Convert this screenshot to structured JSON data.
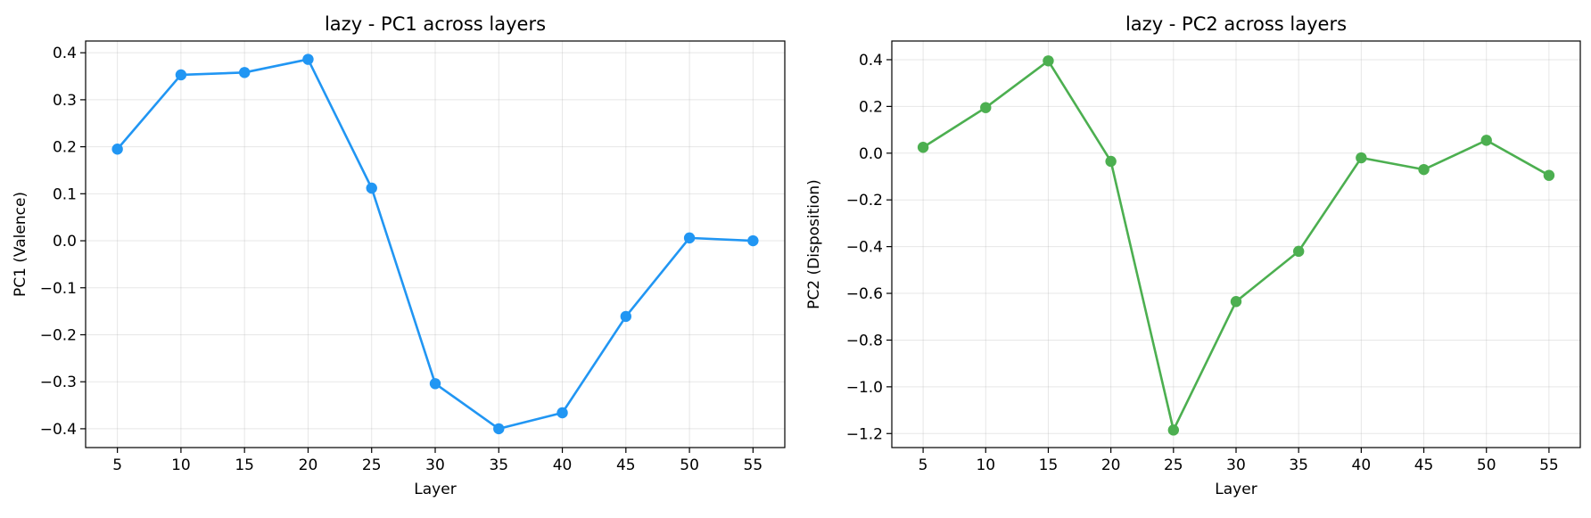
{
  "chart_data": [
    {
      "type": "line",
      "title": "lazy - PC1 across layers",
      "xlabel": "Layer",
      "ylabel": "PC1 (Valence)",
      "x": [
        5,
        10,
        15,
        20,
        25,
        30,
        35,
        40,
        45,
        50,
        55
      ],
      "xticks": [
        5,
        10,
        15,
        20,
        25,
        30,
        35,
        40,
        45,
        50,
        55
      ],
      "xlim": [
        2.5,
        57.5
      ],
      "ylim": [
        -0.44,
        0.425
      ],
      "yticks": [
        0.4,
        0.3,
        0.2,
        0.1,
        0.0,
        -0.1,
        -0.2,
        -0.3,
        -0.4
      ],
      "ytick_labels": [
        "0.4",
        "0.3",
        "0.2",
        "0.1",
        "0.0",
        "−0.1",
        "−0.2",
        "−0.3",
        "−0.4"
      ],
      "grid": true,
      "color": "#2196F3",
      "values": [
        0.195,
        0.353,
        0.358,
        0.386,
        0.112,
        -0.304,
        -0.4,
        -0.366,
        -0.161,
        0.006,
        0.0
      ]
    },
    {
      "type": "line",
      "title": "lazy - PC2 across layers",
      "xlabel": "Layer",
      "ylabel": "PC2 (Disposition)",
      "x": [
        5,
        10,
        15,
        20,
        25,
        30,
        35,
        40,
        45,
        50,
        55
      ],
      "xticks": [
        5,
        10,
        15,
        20,
        25,
        30,
        35,
        40,
        45,
        50,
        55
      ],
      "xlim": [
        2.5,
        57.5
      ],
      "ylim": [
        -1.26,
        0.48
      ],
      "yticks": [
        0.4,
        0.2,
        0.0,
        -0.2,
        -0.4,
        -0.6,
        -0.8,
        -1.0,
        -1.2
      ],
      "ytick_labels": [
        "0.4",
        "0.2",
        "0.0",
        "−0.2",
        "−0.4",
        "−0.6",
        "−0.8",
        "−1.0",
        "−1.2"
      ],
      "grid": true,
      "color": "#4CAF50",
      "values": [
        0.025,
        0.195,
        0.395,
        -0.035,
        -1.185,
        -0.635,
        -0.42,
        -0.02,
        -0.07,
        0.055,
        -0.095
      ]
    }
  ]
}
